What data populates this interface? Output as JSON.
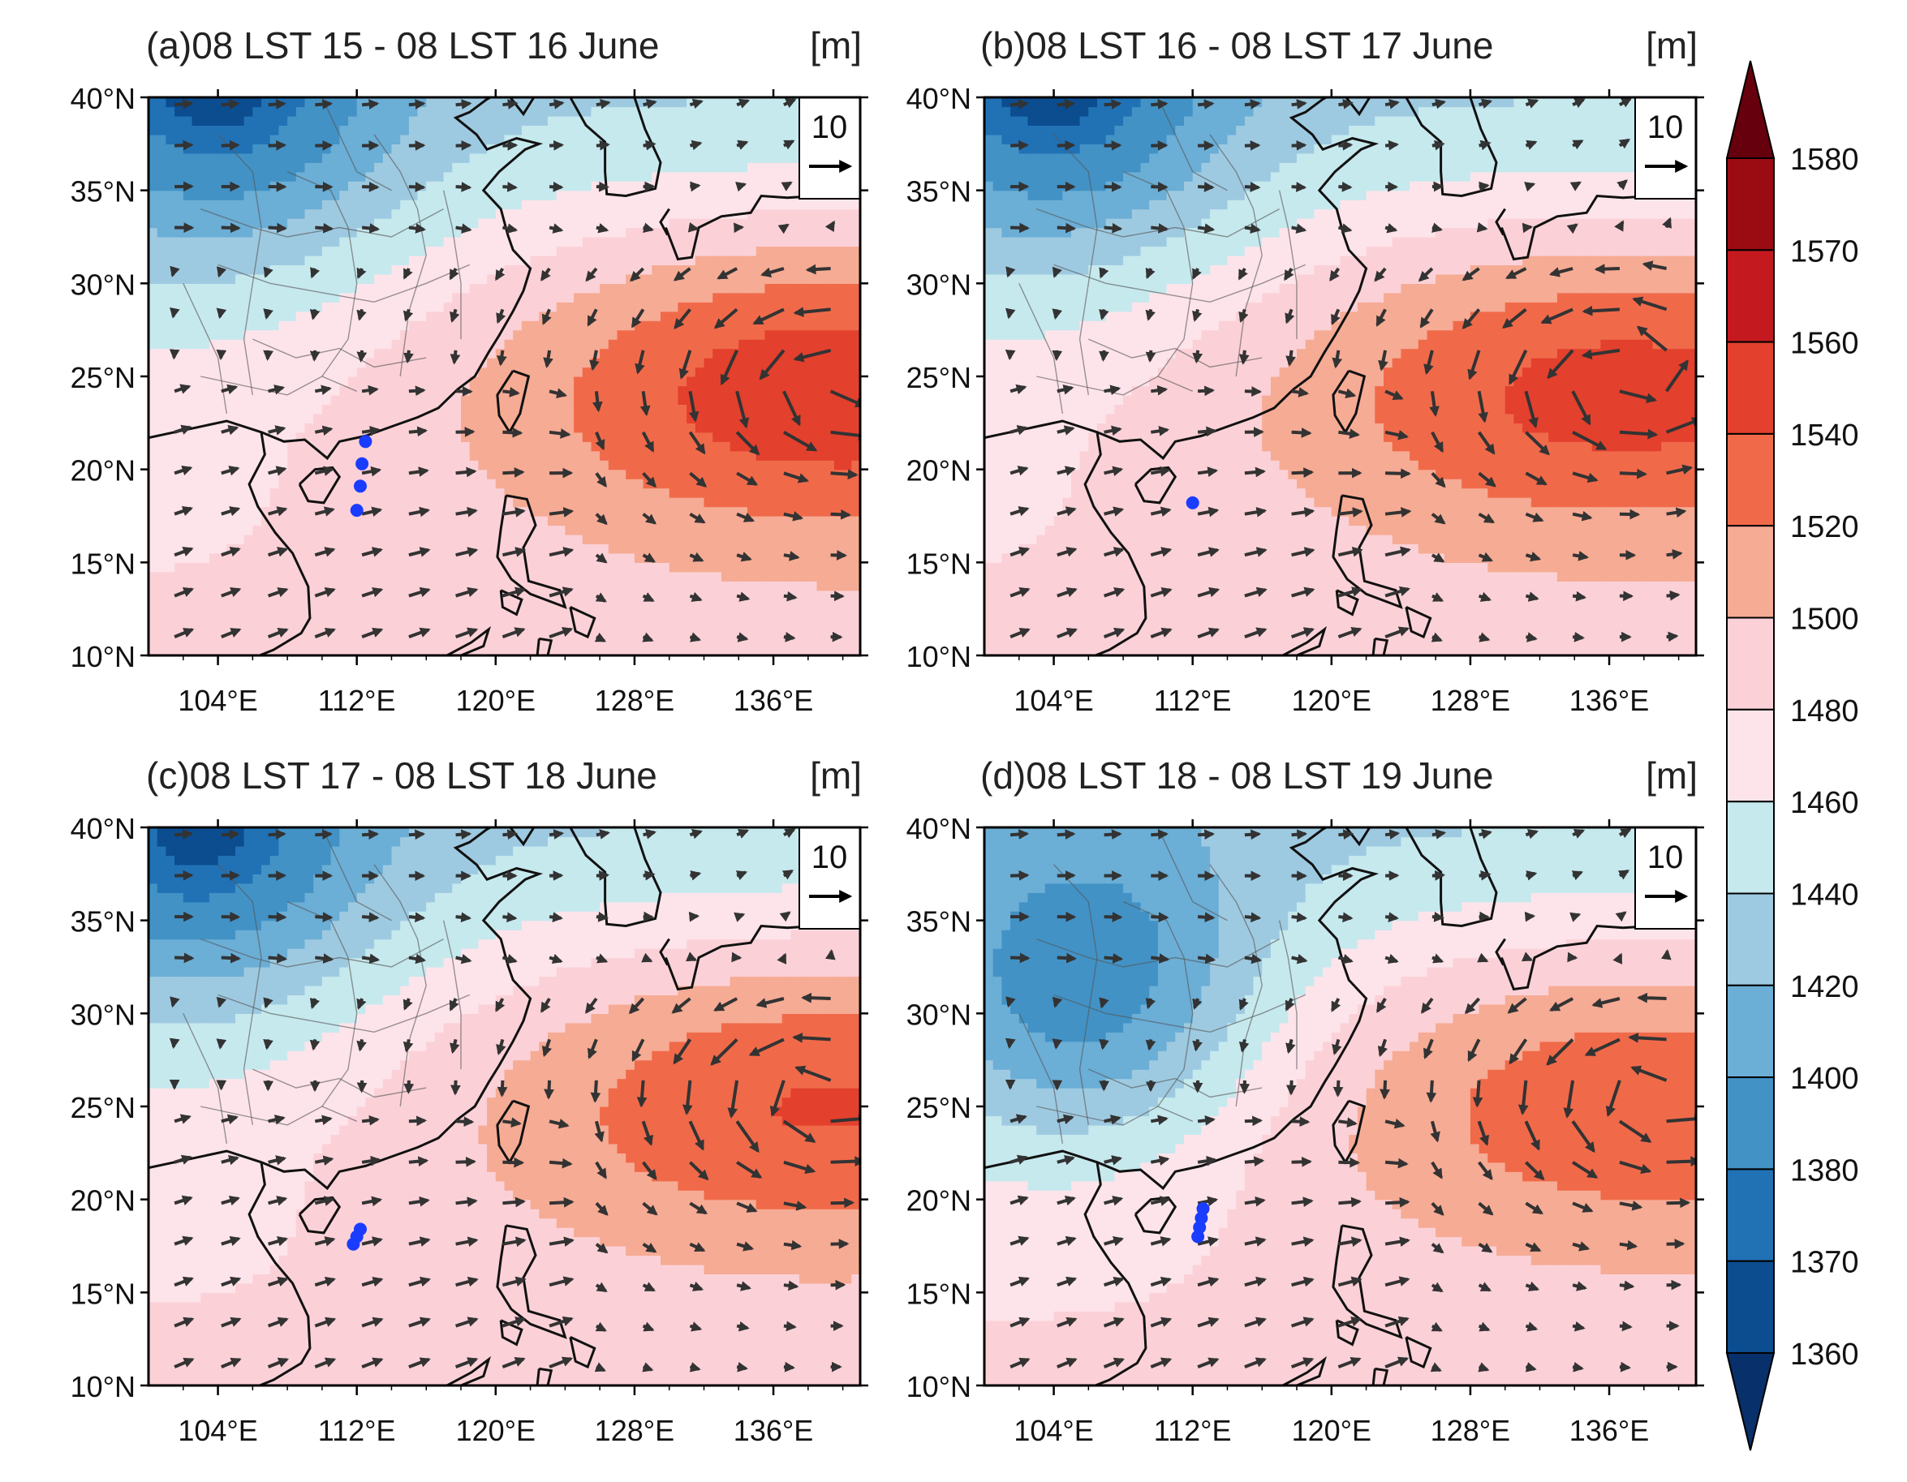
{
  "figure": {
    "unit_label": "[m]",
    "panels": [
      {
        "id": "a",
        "title": "(a)08 LST 15 - 08 LST 16 June",
        "high_center": [
          140,
          25
        ],
        "high_strength": 1.0,
        "trough": [
          104,
          40
        ],
        "blue_dots": [
          [
            112.5,
            21.5
          ],
          [
            112.3,
            20.3
          ],
          [
            112.2,
            19.1
          ],
          [
            112.0,
            17.8
          ]
        ]
      },
      {
        "id": "b",
        "title": "(b)08 LST 16 - 08 LST 17 June",
        "high_center": [
          137,
          25
        ],
        "high_strength": 0.93,
        "trough": [
          104,
          40
        ],
        "blue_dots": [
          [
            112.0,
            18.2
          ]
        ]
      },
      {
        "id": "c",
        "title": "(c)08 LST 17 - 08 LST 18 June",
        "high_center": [
          139,
          26
        ],
        "high_strength": 0.88,
        "trough": [
          103,
          39
        ],
        "blue_dots": [
          [
            111.8,
            17.6
          ],
          [
            112.0,
            18.0
          ],
          [
            112.2,
            18.4
          ]
        ]
      },
      {
        "id": "d",
        "title": "(d)08 LST 18 - 08 LST 19 June",
        "high_center": [
          139,
          26
        ],
        "high_strength": 0.82,
        "trough": [
          106,
          31
        ],
        "blue_dots": [
          [
            112.5,
            19.0
          ],
          [
            112.4,
            18.5
          ],
          [
            112.3,
            18.0
          ],
          [
            112.6,
            19.5
          ]
        ]
      }
    ],
    "lat_labels": [
      "10°N",
      "15°N",
      "20°N",
      "25°N",
      "30°N",
      "35°N",
      "40°N"
    ],
    "lat_values": [
      10,
      15,
      20,
      25,
      30,
      35,
      40
    ],
    "lon_labels": [
      "104°E",
      "112°E",
      "120°E",
      "128°E",
      "136°E"
    ],
    "lon_values": [
      104,
      112,
      120,
      128,
      136
    ],
    "ref_vector": {
      "label": "10",
      "speed": 10
    },
    "colorbar": {
      "levels": [
        "1360",
        "1370",
        "1380",
        "1400",
        "1420",
        "1440",
        "1460",
        "1480",
        "1500",
        "1520",
        "1540",
        "1560",
        "1570",
        "1580"
      ],
      "colors": [
        "#08306b",
        "#0b4d8f",
        "#2171b5",
        "#4292c6",
        "#6baed6",
        "#9ecae1",
        "#c6e9ee",
        "#fde4ea",
        "#fbd1d7",
        "#f6ab94",
        "#f06a4a",
        "#e3402d",
        "#c41a1f",
        "#9b0b12",
        "#67000d"
      ]
    }
  }
}
